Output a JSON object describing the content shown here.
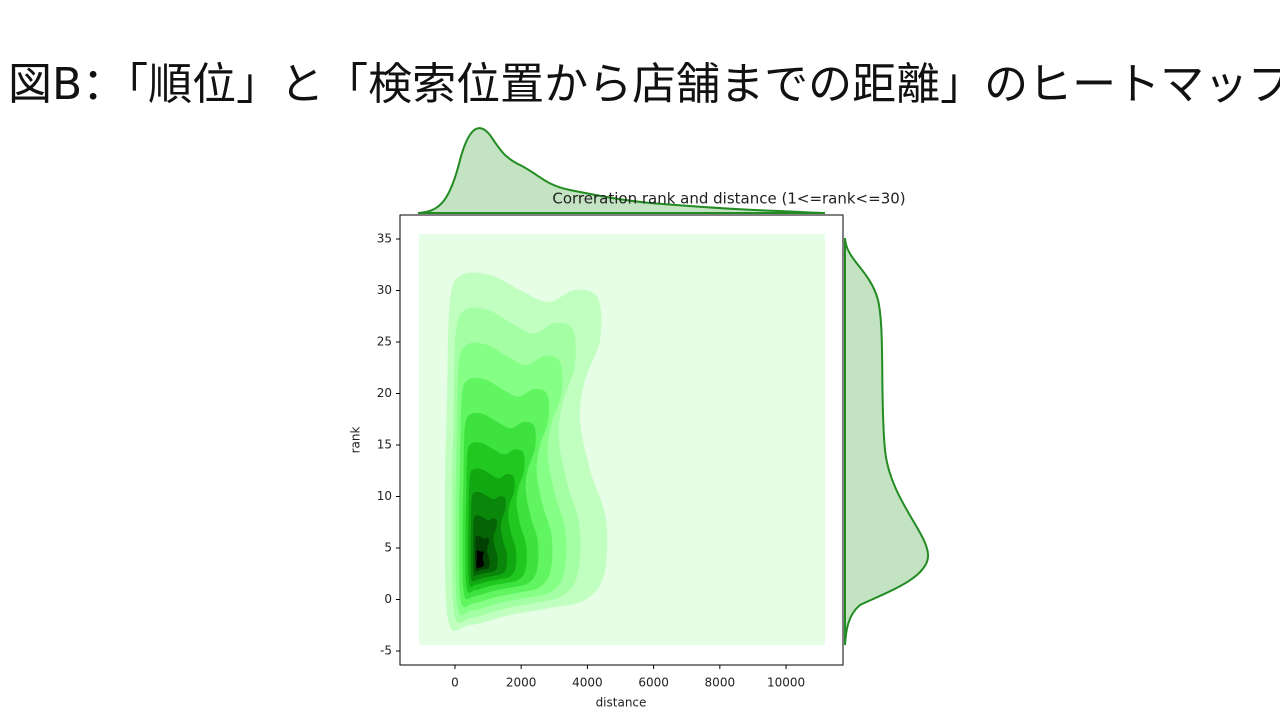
{
  "slide": {
    "title": "図B：「順位」と「検索位置から店舗までの距離」のヒートマップ"
  },
  "chart_data": {
    "type": "kde",
    "title": "Correration rank and distance (1<=rank<=30)",
    "x_label": "distance",
    "y_label": "rank",
    "xlim": [
      -1660,
      11720
    ],
    "xticks": [
      0,
      2000,
      4000,
      6000,
      8000,
      10000
    ],
    "ylim": [
      -6.36,
      37.33
    ],
    "yticks": [
      -5,
      0,
      5,
      10,
      15,
      20,
      25,
      30,
      35
    ],
    "color": "#228b22"
  }
}
